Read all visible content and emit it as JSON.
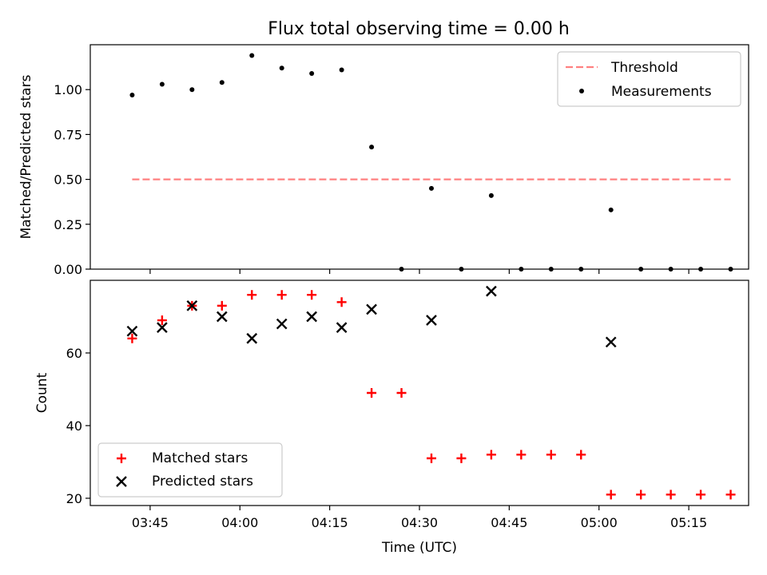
{
  "figure": {
    "title": "Flux total observing time = 0.00 h"
  },
  "chart_data": [
    {
      "type": "scatter",
      "ylabel": "Matched/Predicted stars",
      "xlabel": "",
      "ylim": [
        0,
        1.25
      ],
      "xlim": [
        "03:35",
        "05:25"
      ],
      "x_tick_labels_visible": false,
      "y_ticks": [
        0.0,
        0.25,
        0.5,
        0.75,
        1.0
      ],
      "y_tick_labels": [
        "0.00",
        "0.25",
        "0.50",
        "0.75",
        "1.00"
      ],
      "legend": {
        "placement": "upper-right",
        "entries": [
          "Threshold",
          "Measurements"
        ]
      },
      "threshold": {
        "name": "Threshold",
        "y": 0.5,
        "x_start": "03:42",
        "x_end": "05:22",
        "color": "#ff8080",
        "style": "dashed"
      },
      "series": [
        {
          "name": "Measurements",
          "marker": "dot",
          "color": "#000000",
          "x": [
            "03:42",
            "03:47",
            "03:52",
            "03:57",
            "04:02",
            "04:07",
            "04:12",
            "04:17",
            "04:22",
            "04:27",
            "04:32",
            "04:37",
            "04:42",
            "04:47",
            "04:52",
            "04:57",
            "05:02",
            "05:07",
            "05:12",
            "05:17",
            "05:22"
          ],
          "y": [
            0.97,
            1.03,
            1.0,
            1.04,
            1.19,
            1.12,
            1.09,
            1.11,
            0.68,
            0.0,
            0.45,
            0.0,
            0.41,
            0.0,
            0.0,
            0.0,
            0.33,
            0.0,
            0.0,
            0.0,
            0.0
          ]
        }
      ]
    },
    {
      "type": "scatter",
      "ylabel": "Count",
      "xlabel": "Time (UTC)",
      "ylim": [
        18,
        80
      ],
      "xlim": [
        "03:35",
        "05:25"
      ],
      "y_ticks": [
        20,
        40,
        60
      ],
      "y_tick_labels": [
        "20",
        "40",
        "60"
      ],
      "x_ticks": [
        "03:45",
        "04:00",
        "04:15",
        "04:30",
        "04:45",
        "05:00",
        "05:15"
      ],
      "x_tick_labels": [
        "03:45",
        "04:00",
        "04:15",
        "04:30",
        "04:45",
        "05:00",
        "05:15"
      ],
      "legend": {
        "placement": "lower-left",
        "entries": [
          "Matched stars",
          "Predicted stars"
        ]
      },
      "series": [
        {
          "name": "Matched stars",
          "marker": "plus",
          "color": "#ff0000",
          "x": [
            "03:42",
            "03:47",
            "03:52",
            "03:57",
            "04:02",
            "04:07",
            "04:12",
            "04:17",
            "04:22",
            "04:27",
            "04:32",
            "04:37",
            "04:42",
            "04:47",
            "04:52",
            "04:57",
            "05:02",
            "05:07",
            "05:12",
            "05:17",
            "05:22"
          ],
          "y": [
            64,
            69,
            73,
            73,
            76,
            76,
            76,
            74,
            49,
            49,
            31,
            31,
            32,
            32,
            32,
            32,
            21,
            21,
            21,
            21,
            21
          ]
        },
        {
          "name": "Predicted stars",
          "marker": "x",
          "color": "#000000",
          "x": [
            "03:42",
            "03:47",
            "03:52",
            "03:57",
            "04:02",
            "04:07",
            "04:12",
            "04:17",
            "04:22",
            "04:32",
            "04:42",
            "05:02"
          ],
          "y": [
            66,
            67,
            73,
            70,
            64,
            68,
            70,
            67,
            72,
            69,
            77,
            63
          ]
        }
      ]
    }
  ]
}
